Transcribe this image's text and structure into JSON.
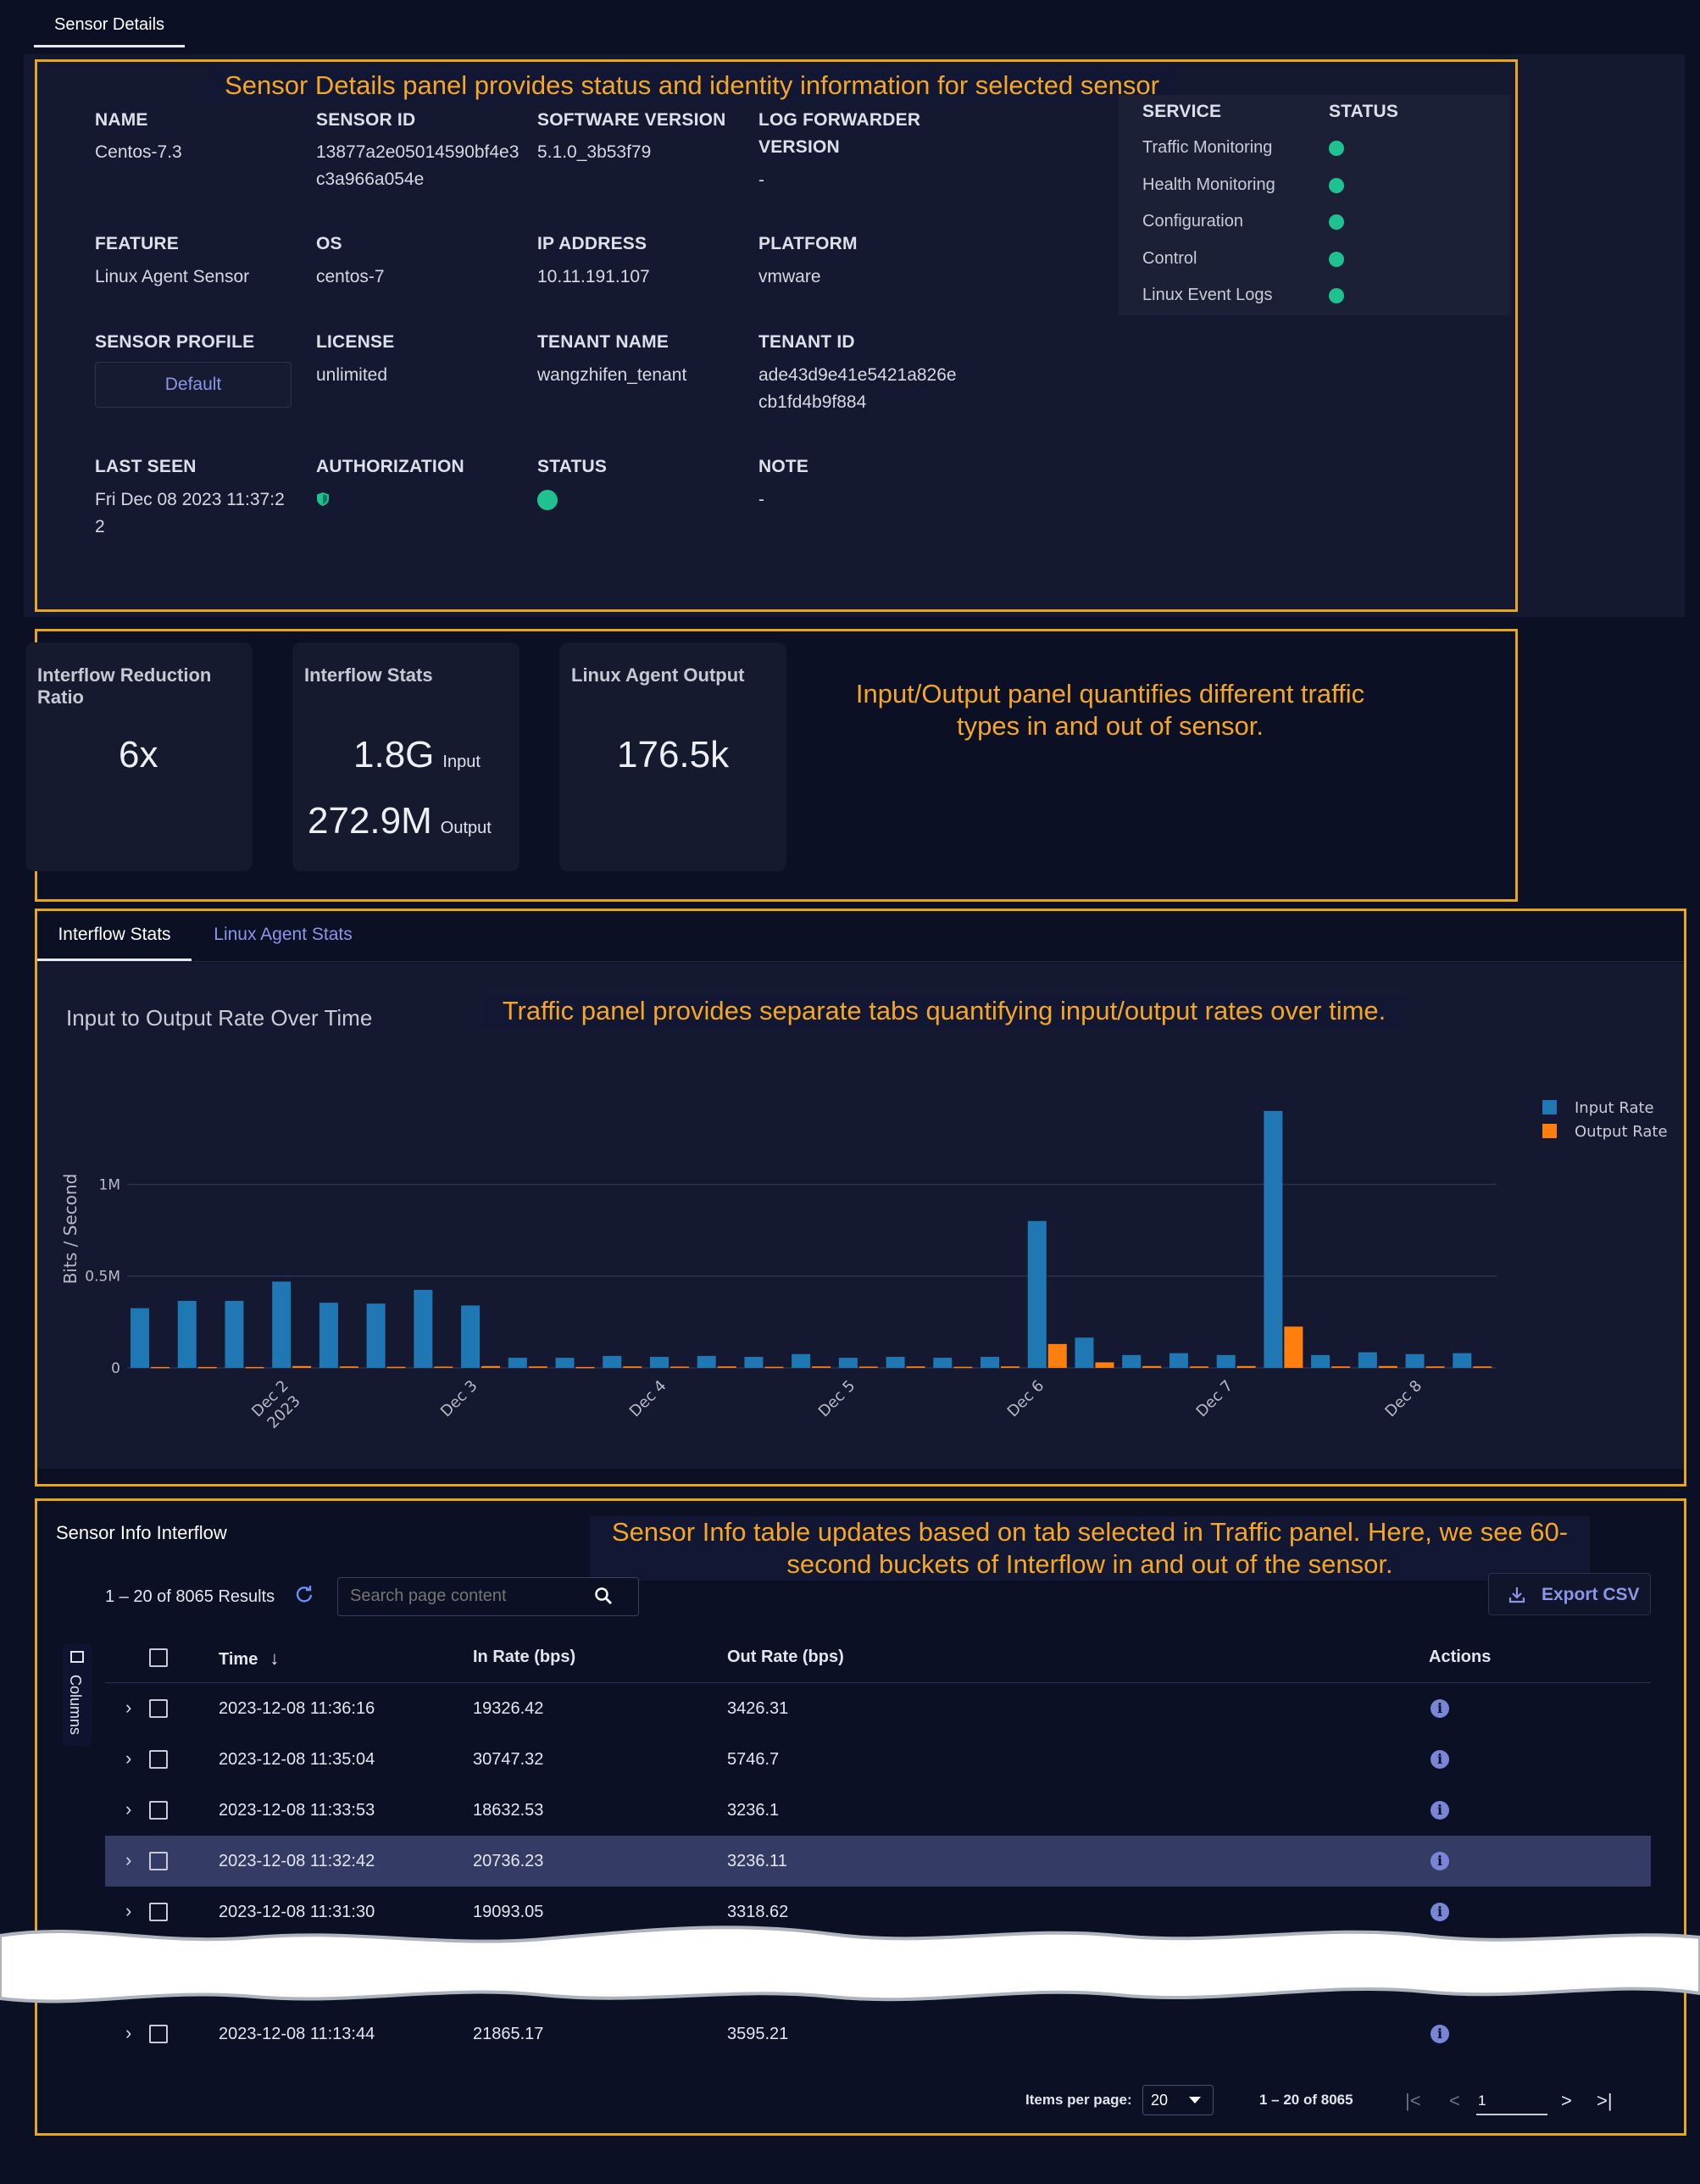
{
  "top_tab": "Sensor Details",
  "annotations": {
    "details": "Sensor Details panel provides status and identity information for selected sensor",
    "io": "Input/Output panel quantifies different traffic types in and out of sensor.",
    "traffic": "Traffic panel provides separate tabs quantifying input/output rates over time.",
    "table": "Sensor Info table updates based on tab selected in Traffic panel. Here, we see 60-second buckets of Interflow in and out of the sensor."
  },
  "details": {
    "name_label": "NAME",
    "name": "Centos-7.3",
    "sensor_id_label": "SENSOR ID",
    "sensor_id": "13877a2e05014590bf4e3c3a966a054e",
    "software_version_label": "SOFTWARE VERSION",
    "software_version": "5.1.0_3b53f79",
    "log_forwarder_label": "LOG FORWARDER VERSION",
    "log_forwarder": "-",
    "feature_label": "FEATURE",
    "feature": "Linux Agent Sensor",
    "os_label": "OS",
    "os": "centos-7",
    "ip_label": "IP ADDRESS",
    "ip": "10.11.191.107",
    "platform_label": "PLATFORM",
    "platform": "vmware",
    "profile_label": "SENSOR PROFILE",
    "profile": "Default",
    "license_label": "LICENSE",
    "license": "unlimited",
    "tenant_name_label": "TENANT NAME",
    "tenant_name": "wangzhifen_tenant",
    "tenant_id_label": "TENANT ID",
    "tenant_id": "ade43d9e41e5421a826ecb1fd4b9f884",
    "last_seen_label": "LAST SEEN",
    "last_seen": "Fri Dec 08 2023 11:37:22",
    "authorization_label": "AUTHORIZATION",
    "status_label": "STATUS",
    "note_label": "NOTE",
    "note": "-"
  },
  "services": {
    "header_service": "SERVICE",
    "header_status": "STATUS",
    "items": [
      {
        "name": "Traffic Monitoring",
        "status_color": "#1fc28f"
      },
      {
        "name": "Health Monitoring",
        "status_color": "#1fc28f"
      },
      {
        "name": "Configuration",
        "status_color": "#1fc28f"
      },
      {
        "name": "Control",
        "status_color": "#1fc28f"
      },
      {
        "name": "Linux Event Logs",
        "status_color": "#1fc28f"
      }
    ]
  },
  "cards": {
    "reduction": {
      "title": "Interflow Reduction Ratio",
      "value": "6x"
    },
    "stats": {
      "title": "Interflow Stats",
      "input_value": "1.8G",
      "input_label": "Input",
      "output_value": "272.9M",
      "output_label": "Output"
    },
    "linux": {
      "title": "Linux Agent Output",
      "value": "176.5k"
    }
  },
  "traffic_tabs": [
    {
      "label": "Interflow Stats",
      "active": true
    },
    {
      "label": "Linux Agent Stats",
      "active": false
    }
  ],
  "chart_data": {
    "type": "bar",
    "title": "Input to Output Rate Over Time",
    "ylabel": "Bits / Second",
    "xlabel": "",
    "ylim": [
      0,
      1450000
    ],
    "yticks": [
      {
        "value": 0,
        "label": "0"
      },
      {
        "value": 500000,
        "label": "0.5M"
      },
      {
        "value": 1000000,
        "label": "1M"
      }
    ],
    "xticks": [
      {
        "index": 3,
        "label": "Dec 2",
        "sub": "2023"
      },
      {
        "index": 7,
        "label": "Dec 3"
      },
      {
        "index": 11,
        "label": "Dec 4"
      },
      {
        "index": 15,
        "label": "Dec 5"
      },
      {
        "index": 19,
        "label": "Dec 6"
      },
      {
        "index": 23,
        "label": "Dec 7"
      },
      {
        "index": 27,
        "label": "Dec 8"
      }
    ],
    "series": [
      {
        "name": "Input Rate",
        "color": "#1f77b4",
        "values": [
          325000,
          365000,
          365000,
          470000,
          355000,
          350000,
          425000,
          340000,
          55000,
          55000,
          65000,
          60000,
          65000,
          60000,
          75000,
          55000,
          60000,
          55000,
          60000,
          800000,
          165000,
          70000,
          80000,
          70000,
          1400000,
          70000,
          85000,
          75000,
          80000
        ]
      },
      {
        "name": "Output Rate",
        "color": "#ff7f0e",
        "values": [
          5000,
          5000,
          5000,
          10000,
          8000,
          6000,
          7000,
          10000,
          8000,
          5000,
          8000,
          7000,
          8000,
          6000,
          8000,
          7000,
          8000,
          6000,
          8000,
          130000,
          30000,
          10000,
          8000,
          10000,
          225000,
          8000,
          10000,
          8000,
          8000
        ]
      }
    ]
  },
  "table": {
    "title": "Sensor Info Interflow",
    "results": "1 – 20 of 8065 Results",
    "search_placeholder": "Search page content",
    "export": "Export CSV",
    "columns_label": "Columns",
    "headers": {
      "time": "Time",
      "in_rate": "In Rate (bps)",
      "out_rate": "Out Rate (bps)",
      "actions": "Actions"
    },
    "rows": [
      {
        "time": "2023-12-08 11:36:16",
        "in_rate": "19326.42",
        "out_rate": "3426.31"
      },
      {
        "time": "2023-12-08 11:35:04",
        "in_rate": "30747.32",
        "out_rate": "5746.7"
      },
      {
        "time": "2023-12-08 11:33:53",
        "in_rate": "18632.53",
        "out_rate": "3236.1"
      },
      {
        "time": "2023-12-08 11:32:42",
        "in_rate": "20736.23",
        "out_rate": "3236.11"
      },
      {
        "time": "2023-12-08 11:31:30",
        "in_rate": "19093.05",
        "out_rate": "3318.62"
      },
      {
        "time": "2023-12-08 11:13:44",
        "in_rate": "21865.17",
        "out_rate": "3595.21"
      }
    ],
    "pagination": {
      "items_per_page_label": "Items per page:",
      "items_per_page": "20",
      "range": "1 – 20 of 8065",
      "page": "1"
    }
  }
}
